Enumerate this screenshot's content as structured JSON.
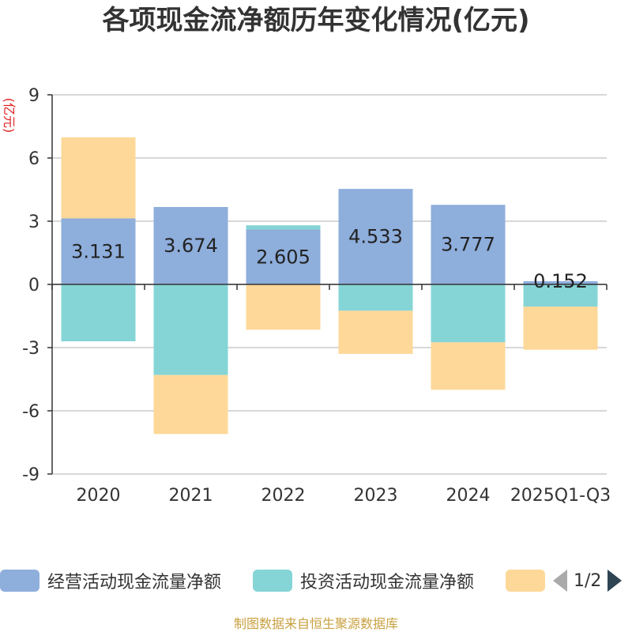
{
  "chart_data": {
    "type": "bar",
    "stacked": true,
    "title": "各项现金流净额历年变化情况(亿元)",
    "ylabel": "(亿元)",
    "ylim": [
      -9,
      9
    ],
    "yticks": [
      9,
      6,
      3,
      0,
      -3,
      -6,
      -9
    ],
    "ytick_labels": [
      "9",
      "6",
      "3",
      "0",
      "-3",
      "-6",
      "-9"
    ],
    "categories": [
      "2020",
      "2021",
      "2022",
      "2023",
      "2024",
      "2025Q1-Q3"
    ],
    "series": [
      {
        "name": "经营活动现金流量净额",
        "color": "#8eaedc",
        "values": [
          3.131,
          3.674,
          2.605,
          4.533,
          3.777,
          0.152
        ]
      },
      {
        "name": "投资活动现金流量净额",
        "color": "#85d5d6",
        "values": [
          -2.7,
          -4.3,
          0.2,
          -1.25,
          -2.75,
          -1.05
        ]
      },
      {
        "name": "",
        "color": "#fdd899",
        "values": [
          3.85,
          -2.8,
          -2.15,
          -2.05,
          -2.25,
          -2.05
        ]
      }
    ],
    "data_labels": [
      "3.131",
      "3.674",
      "2.605",
      "4.533",
      "3.777",
      "0.152"
    ],
    "grid": true,
    "legend_position": "bottom"
  },
  "legend": {
    "items": [
      {
        "label": "经营活动现金流量净额",
        "color": "#8eaedc"
      },
      {
        "label": "投资活动现金流量净额",
        "color": "#85d5d6"
      },
      {
        "label": "",
        "color": "#fdd899"
      }
    ],
    "page_indicator": "1/2"
  },
  "source": "制图数据来自恒生聚源数据库"
}
